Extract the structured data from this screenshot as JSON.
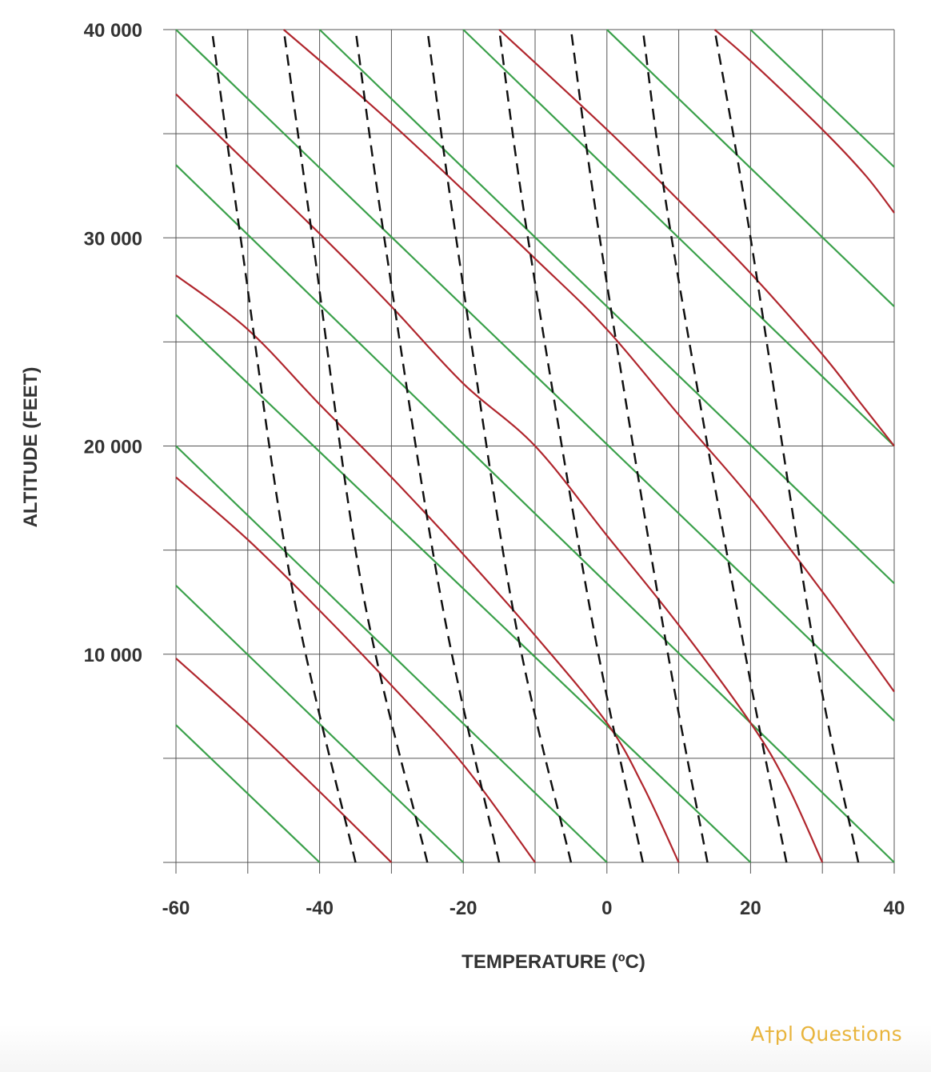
{
  "brand": {
    "text": "A†pl Questions",
    "color": "#e8b43c"
  },
  "chart_data": {
    "type": "line",
    "title": "",
    "xlabel": "TEMPERATURE (ºC)",
    "ylabel": "ALTITUDE (FEET)",
    "xlim": [
      -60,
      40
    ],
    "ylim": [
      0,
      40000
    ],
    "x_ticks": [
      -60,
      -40,
      -20,
      0,
      20,
      40
    ],
    "x_tick_labels": [
      "-60",
      "-40",
      "-20",
      "0",
      "20",
      "40"
    ],
    "y_ticks": [
      10000,
      20000,
      30000,
      40000
    ],
    "y_tick_labels": [
      "10 000",
      "20 000",
      "30 000",
      "40 000"
    ],
    "grid": {
      "x_step": 10,
      "y_step": 5000,
      "color": "#555555"
    },
    "series": [
      {
        "style": "solid",
        "color": "#3aa04a",
        "kind": "straight",
        "lines": [
          [
            [
              -60,
              6600
            ],
            [
              -40,
              0
            ]
          ],
          [
            [
              -60,
              13300
            ],
            [
              -20,
              0
            ]
          ],
          [
            [
              -60,
              20000
            ],
            [
              0,
              0
            ]
          ],
          [
            [
              -60,
              26300
            ],
            [
              20,
              0
            ]
          ],
          [
            [
              -60,
              33500
            ],
            [
              40,
              0
            ]
          ],
          [
            [
              -60,
              40000
            ],
            [
              40,
              6800
            ]
          ],
          [
            [
              -40,
              40000
            ],
            [
              40,
              13400
            ]
          ],
          [
            [
              -20,
              40000
            ],
            [
              40,
              20000
            ]
          ],
          [
            [
              0,
              40000
            ],
            [
              40,
              26700
            ]
          ],
          [
            [
              20,
              40000
            ],
            [
              40,
              33400
            ]
          ]
        ]
      },
      {
        "style": "solid",
        "color": "#b0262d",
        "kind": "curved",
        "lines": [
          [
            [
              -60,
              9800
            ],
            [
              -50,
              6700
            ],
            [
              -40,
              3400
            ],
            [
              -30,
              0
            ]
          ],
          [
            [
              -60,
              18500
            ],
            [
              -50,
              15500
            ],
            [
              -40,
              12100
            ],
            [
              -30,
              8500
            ],
            [
              -20,
              4700
            ],
            [
              -10,
              0
            ]
          ],
          [
            [
              -60,
              28200
            ],
            [
              -50,
              25600
            ],
            [
              -40,
              22000
            ],
            [
              -30,
              18500
            ],
            [
              -20,
              14800
            ],
            [
              -10,
              10900
            ],
            [
              0,
              6700
            ],
            [
              5,
              3700
            ],
            [
              10,
              0
            ]
          ],
          [
            [
              -60,
              36900
            ],
            [
              -40,
              30200
            ],
            [
              -30,
              26700
            ],
            [
              -20,
              23000
            ],
            [
              -10,
              20000
            ],
            [
              0,
              15700
            ],
            [
              10,
              11400
            ],
            [
              20,
              6700
            ],
            [
              25,
              3800
            ],
            [
              30,
              0
            ]
          ],
          [
            [
              -45,
              40000
            ],
            [
              -30,
              35500
            ],
            [
              -10,
              29000
            ],
            [
              0,
              25600
            ],
            [
              10,
              21500
            ],
            [
              20,
              17500
            ],
            [
              30,
              13000
            ],
            [
              35,
              10600
            ],
            [
              40,
              8200
            ]
          ],
          [
            [
              -15,
              40000
            ],
            [
              0,
              35200
            ],
            [
              10,
              31800
            ],
            [
              20,
              28300
            ],
            [
              30,
              24400
            ],
            [
              35,
              22200
            ],
            [
              40,
              20000
            ]
          ],
          [
            [
              15,
              40000
            ],
            [
              20,
              38500
            ],
            [
              30,
              35200
            ],
            [
              36,
              33000
            ],
            [
              40,
              31200
            ]
          ]
        ]
      },
      {
        "style": "dashed",
        "color": "#111111",
        "kind": "curved",
        "lines": [
          [
            [
              -35,
              0
            ],
            [
              -44,
              13500
            ],
            [
              -51,
              30000
            ],
            [
              -55,
              40000
            ]
          ],
          [
            [
              -25,
              0
            ],
            [
              -34,
              13000
            ],
            [
              -41,
              30000
            ],
            [
              -45,
              40000
            ]
          ],
          [
            [
              -15,
              0
            ],
            [
              -23,
              12500
            ],
            [
              -31,
              30000
            ],
            [
              -35,
              40000
            ]
          ],
          [
            [
              -5,
              0
            ],
            [
              -13,
              12000
            ],
            [
              -21,
              30000
            ],
            [
              -25,
              40000
            ]
          ],
          [
            [
              5,
              0
            ],
            [
              -2,
              11500
            ],
            [
              -11,
              30000
            ],
            [
              -15,
              40000
            ]
          ],
          [
            [
              14,
              0
            ],
            [
              8,
              11000
            ],
            [
              -1,
              30000
            ],
            [
              -5,
              40000
            ]
          ],
          [
            [
              25,
              0
            ],
            [
              19,
              10500
            ],
            [
              9,
              30000
            ],
            [
              5,
              40000
            ]
          ],
          [
            [
              35,
              0
            ],
            [
              29,
              10000
            ],
            [
              20,
              30000
            ],
            [
              15,
              40000
            ]
          ]
        ]
      }
    ]
  }
}
